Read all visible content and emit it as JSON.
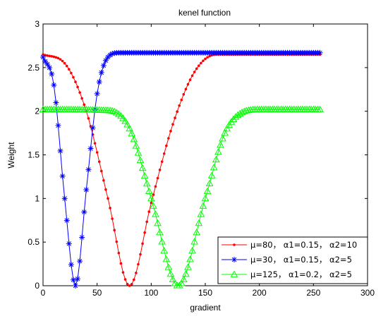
{
  "chart_data": {
    "type": "line",
    "title": "kenel function",
    "xlabel": "gradient",
    "ylabel": "Weight",
    "xlim": [
      0,
      300
    ],
    "ylim": [
      0,
      3
    ],
    "xticks": [
      0,
      50,
      100,
      150,
      200,
      250,
      300
    ],
    "yticks": [
      0,
      0.5,
      1,
      1.5,
      2,
      2.5,
      3
    ],
    "xtick_labels": [
      "0",
      "50",
      "100",
      "150",
      "200",
      "250",
      "300"
    ],
    "ytick_labels": [
      "0",
      "0.5",
      "1",
      "1.5",
      "2",
      "2.5",
      "3"
    ],
    "grid": false,
    "legend_position": "bottom-right",
    "series": [
      {
        "name": "μ=80， α1=0.15， α2=10",
        "color": "#ff0000",
        "marker": "dot",
        "mu": 80,
        "amplitude": 2.65,
        "x_range": [
          0,
          256
        ],
        "x_step": 2,
        "sample_points": [
          [
            0,
            2.65
          ],
          [
            20,
            2.55
          ],
          [
            40,
            2.0
          ],
          [
            60,
            1.0
          ],
          [
            80,
            0
          ],
          [
            100,
            0.95
          ],
          [
            120,
            1.85
          ],
          [
            140,
            2.45
          ],
          [
            160,
            2.65
          ],
          [
            256,
            2.65
          ]
        ]
      },
      {
        "name": "μ=30， α1=0.15， α2=5",
        "color": "#0000ff",
        "marker": "star",
        "mu": 30,
        "amplitude": 2.67,
        "x_range": [
          0,
          256
        ],
        "x_step": 2,
        "sample_points": [
          [
            0,
            2.62
          ],
          [
            10,
            2.3
          ],
          [
            20,
            1.0
          ],
          [
            30,
            0
          ],
          [
            40,
            1.1
          ],
          [
            50,
            2.2
          ],
          [
            60,
            2.62
          ],
          [
            70,
            2.67
          ],
          [
            256,
            2.67
          ]
        ]
      },
      {
        "name": "μ=125， α1=0.2， α2=5",
        "color": "#00ff00",
        "marker": "triangle",
        "mu": 125,
        "amplitude": 2.02,
        "x_range": [
          0,
          256
        ],
        "x_step": 2,
        "sample_points": [
          [
            0,
            2.02
          ],
          [
            60,
            2.01
          ],
          [
            80,
            1.8
          ],
          [
            100,
            1.0
          ],
          [
            125,
            0
          ],
          [
            150,
            1.0
          ],
          [
            170,
            1.8
          ],
          [
            200,
            2.02
          ],
          [
            256,
            2.02
          ]
        ]
      }
    ]
  }
}
